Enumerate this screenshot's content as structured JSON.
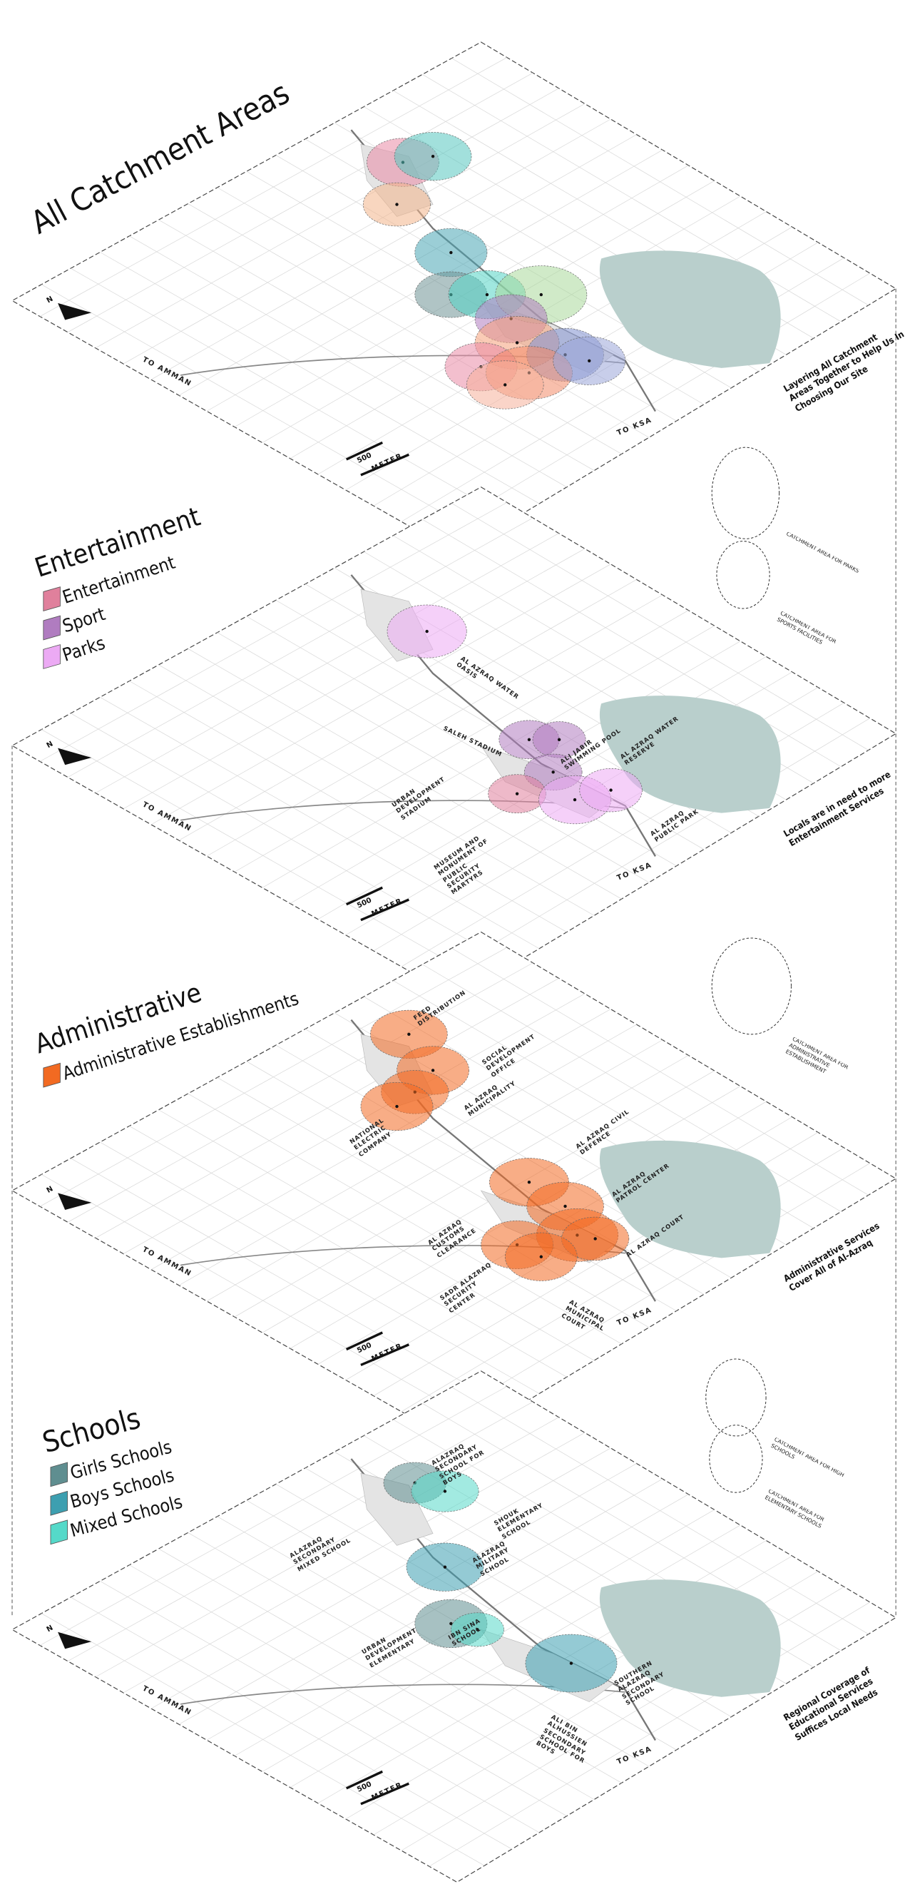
{
  "layers": [
    {
      "title": "All Catchment Areas",
      "note": "Layering All Catchment Areas Together to Help Us In Choosing Our Site",
      "west": "TO AMMAN",
      "south": "TO KSA",
      "north": "N",
      "scale_value": "500",
      "scale_unit": "METER"
    },
    {
      "title": "Entertainment",
      "legend": [
        {
          "label": "Entertainment",
          "color": "#e0809c"
        },
        {
          "label": "Sport",
          "color": "#b07cc0"
        },
        {
          "label": "Parks",
          "color": "#ecaaf4"
        }
      ],
      "keys": [
        "CATCHMENT AREA FOR PARKS",
        "CATCHMENT AREA FOR SPORTS FACILITIES"
      ],
      "places": [
        "AL AZRAQ WATER OASIS",
        "SALEH STADIUM",
        "ALI JABIR SWIMMING POOL",
        "AL AZRAQ WATER RESERVE",
        "URBAN DEVELOPMENT STADIUM",
        "AL AZRAQ PUBLIC PARK",
        "MUSEUM AND MONUMENT OF PUBLIC SECURITY MARTYRS"
      ],
      "note": "Locals are in need to more Entertainment Services",
      "west": "TO AMMAN",
      "south": "TO KSA",
      "north": "N",
      "scale_value": "500",
      "scale_unit": "METER"
    },
    {
      "title": "Administrative",
      "legend": [
        {
          "label": "Administrative Establishments",
          "color": "#f26a22"
        }
      ],
      "keys": [
        "CATCHMENT AREA FOR ADMINISTRATIVE ESTABLISHMENT"
      ],
      "places": [
        "FEED DISTRIBUTION",
        "SOCIAL DEVELOPMENT OFFICE",
        "AL AZRAQ MUNICIPALITY",
        "NATIONAL ELECTRIC COMPANY",
        "AL AZRAQ CIVIL DEFENCE",
        "AL AZRAQ PATROL CENTER",
        "AL AZRAQ CUSTOMS CLEARANCE",
        "AL AZRAQ COURT",
        "SADR ALAZRAQ SECURITY CENTER",
        "AL AZRAQ MUNICIPAL COURT"
      ],
      "note": "Administrative Services Cover All of Al-Azraq",
      "west": "TO AMMAN",
      "south": "TO KSA",
      "north": "N",
      "scale_value": "500",
      "scale_unit": "METER"
    },
    {
      "title": "Schools",
      "legend": [
        {
          "label": "Girls Schools",
          "color": "#5f8e90"
        },
        {
          "label": "Boys Schools",
          "color": "#3d9fb0"
        },
        {
          "label": "Mixed Schools",
          "color": "#55d9c9"
        }
      ],
      "keys": [
        "Catchment Area for High Schools",
        "Catchment Area For Elementary Schools"
      ],
      "places": [
        "ALAZRAQ SECONDARY SCHOOL FOR BOYS",
        "ALAZRAQ SECONDARY MIXED SCHOOL",
        "SHOUK ELEMENTARY SCHOOL",
        "ALAZRAQ MILITARY SCHOOL",
        "URBAN DEVELOPMENT ELEMENTARY",
        "IBN SINA SCHOOL",
        "SOUTHERN ALAZRAQ SECONDARY SCHOOL",
        "ALI BIN ALHUSSIEN SECONDARY SCHOOL FOR BOYS"
      ],
      "note": "Regional Coverage of Educational Services Suffices Local Needs",
      "west": "TO AMMAN",
      "south": "TO KSA",
      "north": "N",
      "scale_value": "500",
      "scale_unit": "METER"
    }
  ]
}
